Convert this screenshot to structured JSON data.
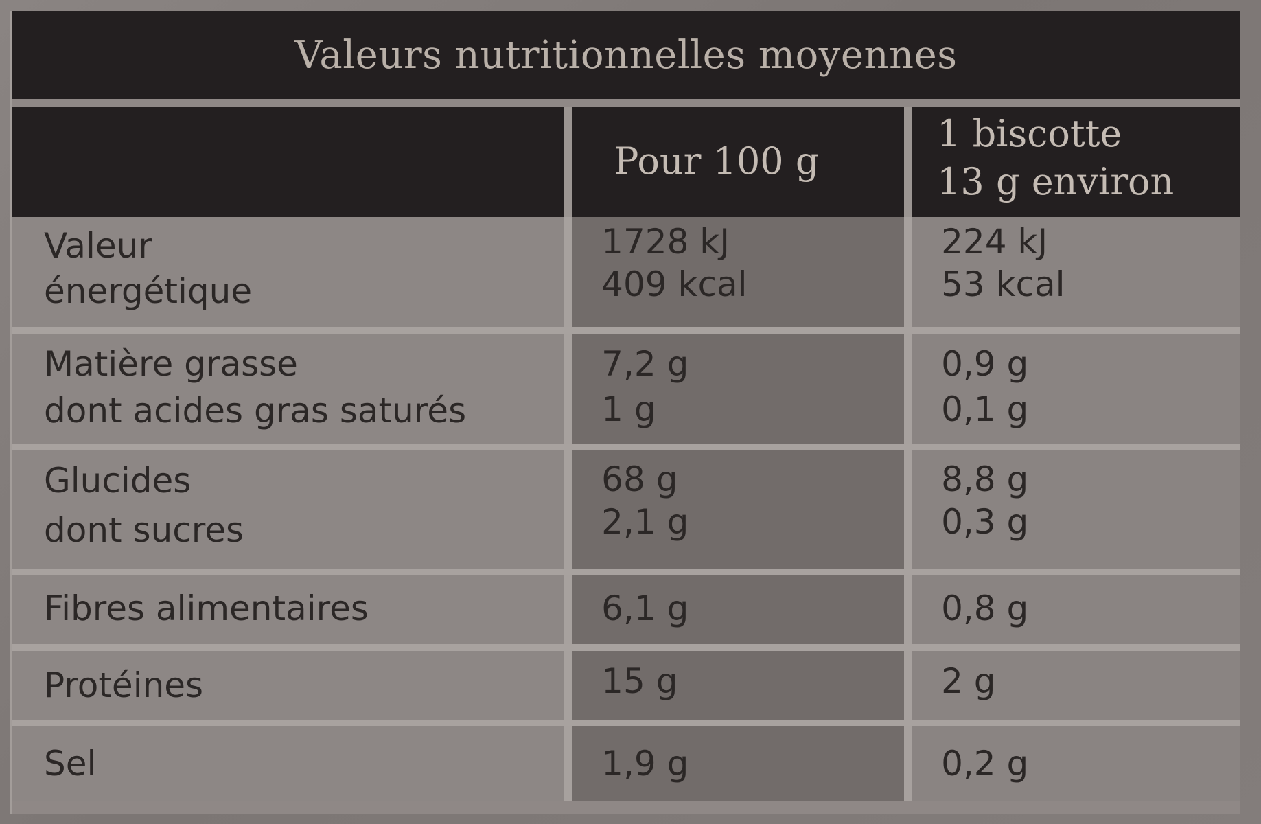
{
  "title": "Valeurs nutritionnelles moyennes",
  "columns": {
    "per100": "Pour 100 g",
    "perUnit_line1": "1 biscotte",
    "perUnit_line2": "13 g environ"
  },
  "rows": [
    {
      "label_line1": "Valeur",
      "label_line2": "énergétique",
      "per100_line1": "1728 kJ",
      "per100_line2": "409 kcal",
      "perUnit_line1": "224 kJ",
      "perUnit_line2": "53 kcal"
    },
    {
      "label_line1": "Matière grasse",
      "label_line2": "dont acides gras saturés",
      "per100_line1": "7,2 g",
      "per100_line2": "1 g",
      "perUnit_line1": "0,9 g",
      "perUnit_line2": "0,1 g"
    },
    {
      "label_line1": "Glucides",
      "label_line2": "dont sucres",
      "per100_line1": "68 g",
      "per100_line2": "2,1 g",
      "perUnit_line1": "8,8 g",
      "perUnit_line2": "0,3 g"
    },
    {
      "label": "Fibres alimentaires",
      "per100": "6,1 g",
      "perUnit": "0,8 g"
    },
    {
      "label": "Protéines",
      "per100": "15 g",
      "perUnit": "2 g"
    },
    {
      "label": "Sel",
      "per100": "1,9 g",
      "perUnit": "0,2 g"
    }
  ]
}
